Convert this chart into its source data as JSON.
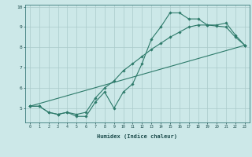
{
  "xlabel": "Humidex (Indice chaleur)",
  "bg_color": "#cce8e8",
  "grid_color": "#aacaca",
  "line_color": "#2d7a6a",
  "xlim": [
    -0.5,
    23.5
  ],
  "ylim": [
    4.3,
    10.1
  ],
  "xticks": [
    0,
    1,
    2,
    3,
    4,
    5,
    6,
    7,
    8,
    9,
    10,
    11,
    12,
    13,
    14,
    15,
    16,
    17,
    18,
    19,
    20,
    21,
    22,
    23
  ],
  "yticks": [
    5,
    6,
    7,
    8,
    9,
    10
  ],
  "line1_x": [
    0,
    1,
    2,
    3,
    4,
    5,
    6,
    7,
    8,
    9,
    10,
    11,
    12,
    13,
    14,
    15,
    16,
    17,
    18,
    19,
    20,
    21,
    22,
    23
  ],
  "line1_y": [
    5.1,
    5.1,
    4.8,
    4.7,
    4.8,
    4.6,
    4.6,
    5.3,
    5.8,
    5.0,
    5.8,
    6.2,
    7.2,
    8.4,
    9.0,
    9.7,
    9.7,
    9.4,
    9.4,
    9.1,
    9.1,
    9.2,
    8.6,
    8.1
  ],
  "line2_x": [
    0,
    1,
    2,
    3,
    4,
    5,
    6,
    7,
    8,
    9,
    10,
    11,
    12,
    13,
    14,
    15,
    16,
    17,
    18,
    19,
    20,
    21,
    22,
    23
  ],
  "line2_y": [
    5.1,
    5.1,
    4.8,
    4.7,
    4.8,
    4.7,
    4.8,
    5.5,
    6.0,
    6.35,
    6.85,
    7.2,
    7.55,
    7.9,
    8.2,
    8.5,
    8.75,
    9.0,
    9.1,
    9.1,
    9.05,
    9.0,
    8.5,
    8.1
  ],
  "line3_x": [
    0,
    23
  ],
  "line3_y": [
    5.1,
    8.1
  ]
}
